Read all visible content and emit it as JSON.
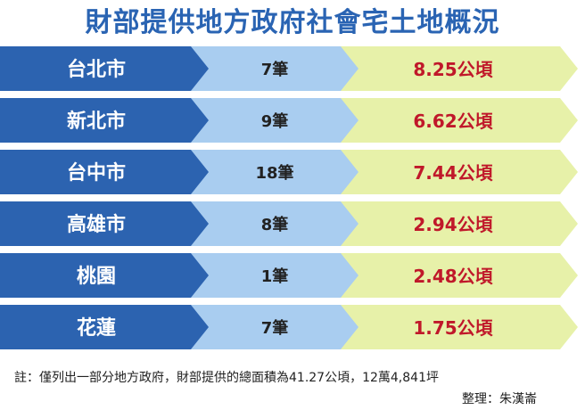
{
  "title": "財部提供地方政府社會宅土地概況",
  "colors": {
    "title": "#2a64b3",
    "city_band": "#2c63b0",
    "count_band": "#a9cdf0",
    "area_band": "#e7f1a9",
    "city_text": "#ffffff",
    "count_text": "#222222",
    "area_text": "#c0182a"
  },
  "chart_data": {
    "type": "table",
    "columns": [
      "city",
      "count",
      "area"
    ],
    "rows": [
      {
        "city": "台北市",
        "count": "7筆",
        "area": "8.25公頃",
        "count_value": 7,
        "area_value": 8.25
      },
      {
        "city": "新北市",
        "count": "9筆",
        "area": "6.62公頃",
        "count_value": 9,
        "area_value": 6.62
      },
      {
        "city": "台中市",
        "count": "18筆",
        "area": "7.44公頃",
        "count_value": 18,
        "area_value": 7.44
      },
      {
        "city": "高雄市",
        "count": "8筆",
        "area": "2.94公頃",
        "count_value": 8,
        "area_value": 2.94
      },
      {
        "city": "桃園",
        "count": "1筆",
        "area": "2.48公頃",
        "count_value": 1,
        "area_value": 2.48
      },
      {
        "city": "花蓮",
        "count": "7筆",
        "area": "1.75公頃",
        "count_value": 7,
        "area_value": 1.75
      }
    ]
  },
  "note": "註：僅列出一部分地方政府，財部提供的總面積為41.27公頃，12萬4,841坪",
  "credit": "整理：朱漢崙"
}
